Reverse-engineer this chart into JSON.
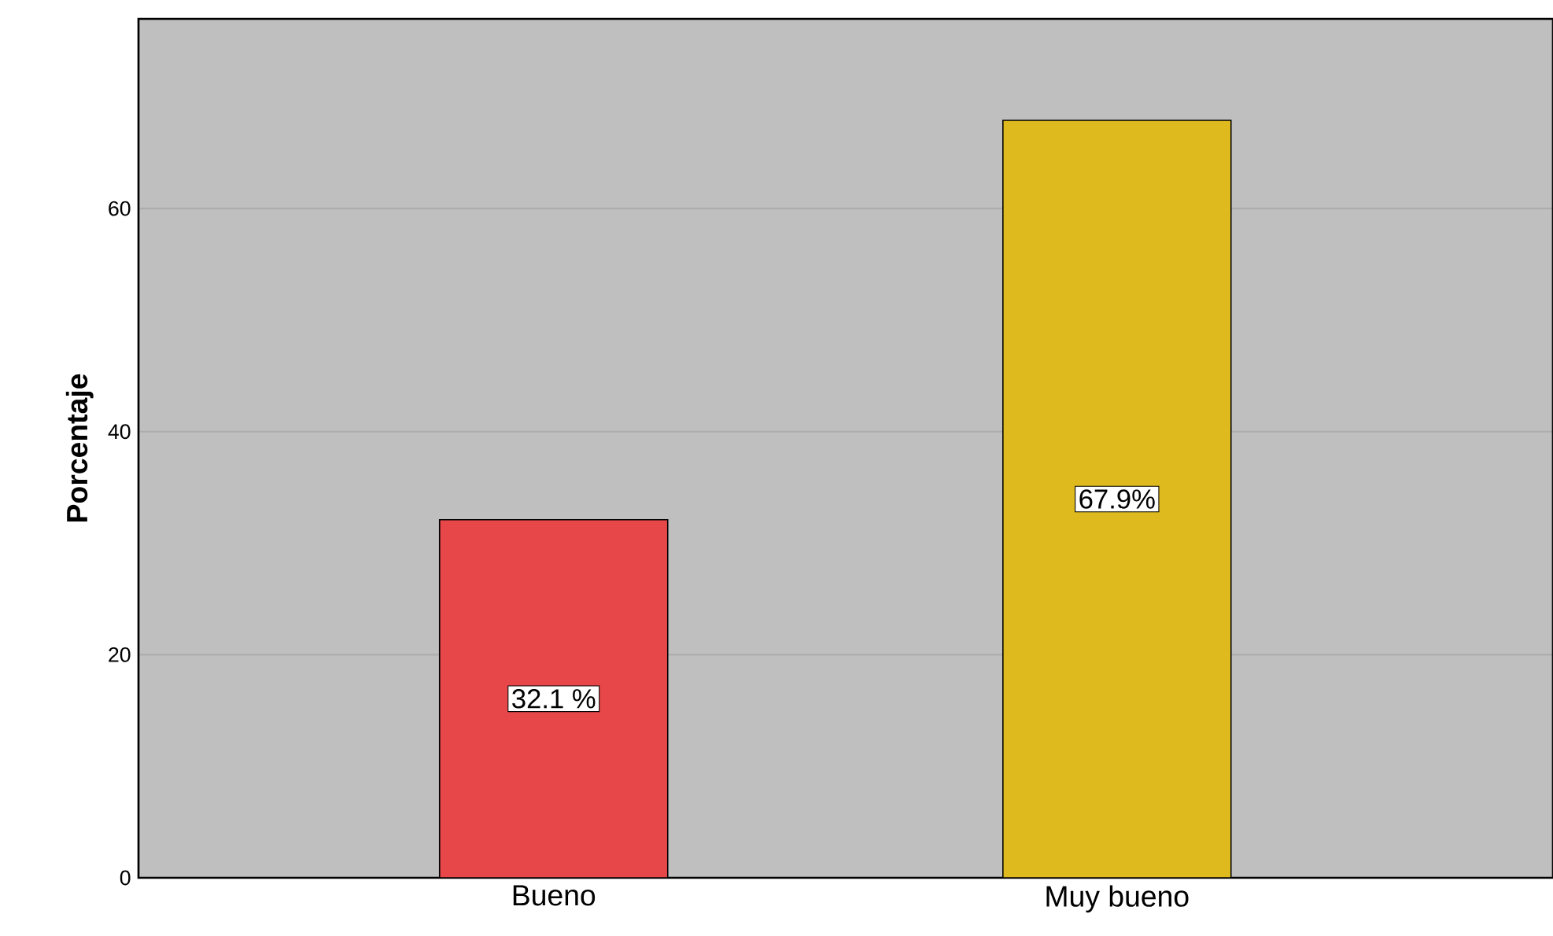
{
  "chart_data": {
    "type": "bar",
    "ylabel": "Porcentaje",
    "categories": [
      "Bueno",
      "Muy bueno"
    ],
    "values": [
      32.1,
      67.9
    ],
    "colors": [
      "#e8474a",
      "#dfba1f"
    ],
    "value_labels": [
      "32.1 %",
      "67.9%"
    ],
    "ylim": [
      0,
      77
    ],
    "yticks": [
      0,
      20,
      40,
      60
    ],
    "grid": "y"
  }
}
